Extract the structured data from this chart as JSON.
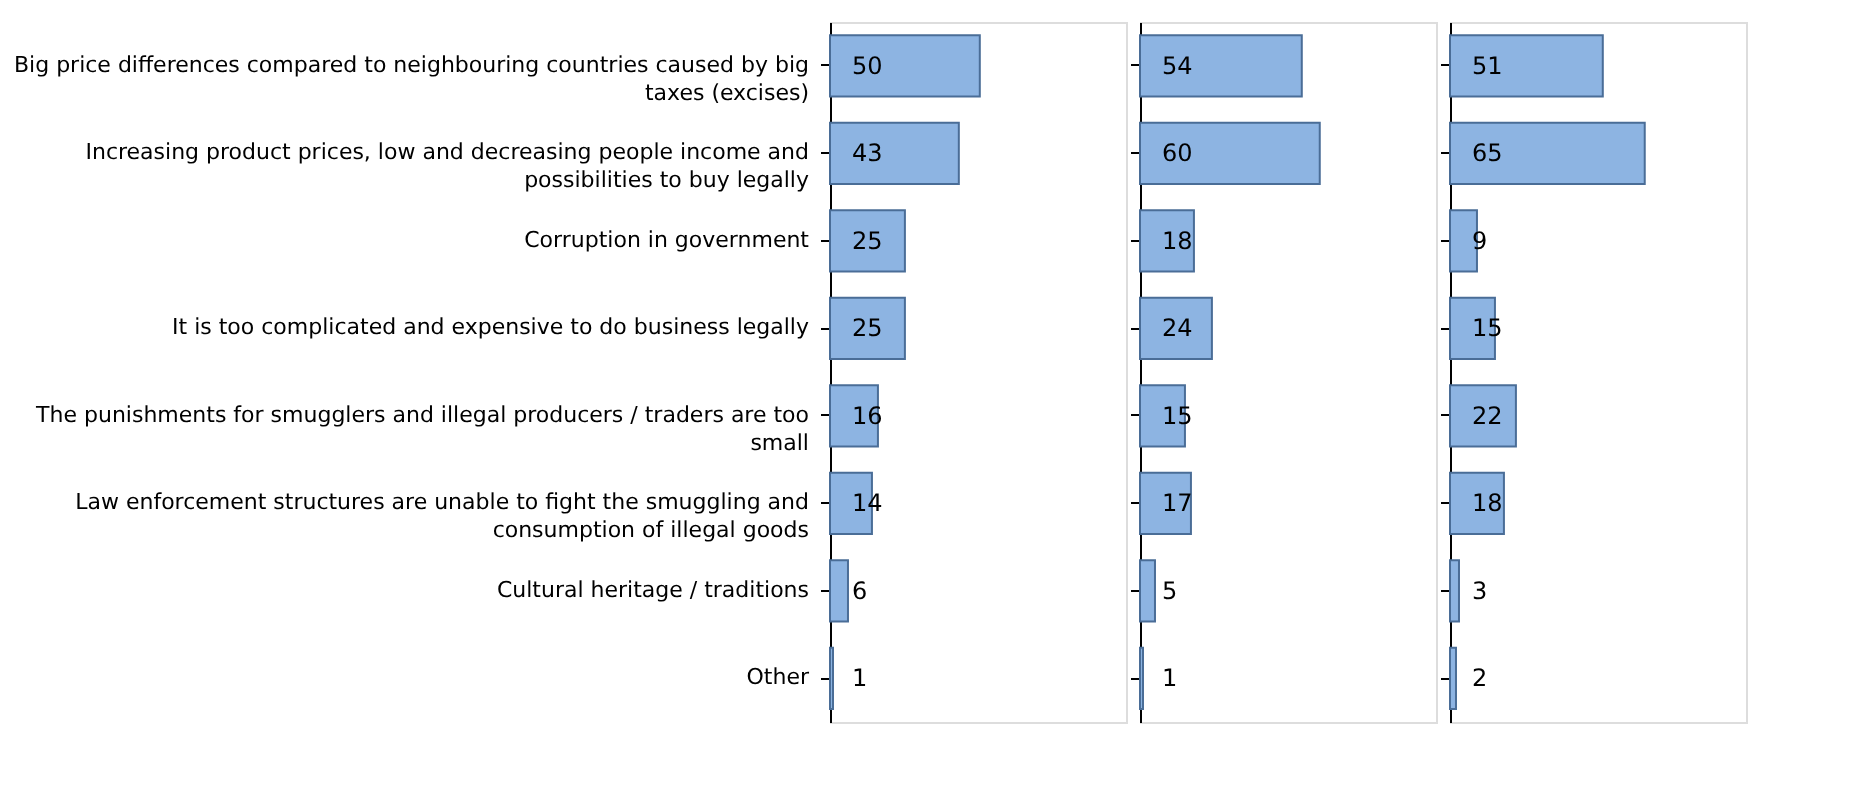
{
  "chart_data": [
    {
      "type": "bar",
      "orientation": "horizontal",
      "categories": [
        "Big price differences compared to neighbouring countries caused by big taxes (excises)",
        "Increasing product prices, low and decreasing people income and possibilities to buy legally",
        "Corruption in government",
        "It is too complicated and expensive to do business legally",
        "The punishments for smugglers and illegal producers / traders are too small",
        "Law enforcement structures are unable to fight the smuggling and consumption of illegal goods",
        "Cultural heritage / traditions",
        "Other"
      ],
      "values": [
        50,
        43,
        25,
        25,
        16,
        14,
        6,
        1
      ],
      "color": "#8db4e2",
      "data_labels": true,
      "tick_labels": "y",
      "grid": false
    },
    {
      "type": "bar",
      "orientation": "horizontal",
      "categories": [
        null,
        null,
        null,
        null,
        null,
        null,
        null,
        null
      ],
      "values": [
        54,
        60,
        18,
        24,
        15,
        17,
        5,
        1
      ],
      "color": "#8db4e2",
      "data_labels": true,
      "tick_labels": false,
      "grid": false
    },
    {
      "type": "bar",
      "orientation": "horizontal",
      "categories": [
        null,
        null,
        null,
        null,
        null,
        null,
        null,
        null
      ],
      "values": [
        51,
        65,
        9,
        15,
        22,
        18,
        3,
        2
      ],
      "color": "#8db4e2",
      "data_labels": true,
      "tick_labels": false,
      "grid": false
    }
  ]
}
